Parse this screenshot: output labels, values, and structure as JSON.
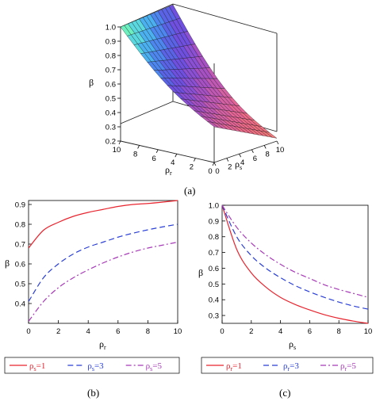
{
  "chart_data": [
    {
      "panel": "(a)",
      "type": "surface3d",
      "zlabel": "β",
      "xlabel": "ρr",
      "ylabel": "ρs",
      "zlim": [
        0.2,
        1.0
      ],
      "z_ticks": [
        "0.2",
        "0.3",
        "0.4",
        "0.5",
        "0.6",
        "0.7",
        "0.8",
        "0.9",
        "1.0"
      ],
      "x_ticks": [
        "10",
        "8",
        "6",
        "4",
        "2",
        "0"
      ],
      "y_ticks": [
        "0",
        "2",
        "4",
        "6",
        "8",
        "10"
      ],
      "corners": [
        {
          "rho_r": 10,
          "rho_s": 0,
          "beta": 1.0
        },
        {
          "rho_r": 0,
          "rho_s": 0,
          "beta": 1.0
        },
        {
          "rho_r": 10,
          "rho_s": 10,
          "beta": 0.45
        },
        {
          "rho_r": 0,
          "rho_s": 10,
          "beta": 0.22
        }
      ]
    },
    {
      "panel": "(b)",
      "type": "line",
      "xlabel": "ρr",
      "ylabel": "β",
      "xlim": [
        0,
        10
      ],
      "ylim": [
        0.3,
        0.92
      ],
      "x_ticks": [
        "0",
        "2",
        "4",
        "6",
        "8",
        "10"
      ],
      "y_ticks": [
        "0.4",
        "0.5",
        "0.6",
        "0.7",
        "0.8",
        "0.9"
      ],
      "x": [
        0,
        1,
        2,
        3,
        4,
        5,
        6,
        7,
        8,
        9,
        10
      ],
      "series": [
        {
          "name_base": "ρ",
          "name_sub": "s",
          "name_tail": "=1",
          "style": "solid",
          "color": "#e8252f",
          "values": [
            0.68,
            0.77,
            0.81,
            0.84,
            0.86,
            0.875,
            0.89,
            0.9,
            0.905,
            0.912,
            0.92
          ]
        },
        {
          "name_base": "ρ",
          "name_sub": "s",
          "name_tail": "=3",
          "style": "dashed",
          "color": "#2a3fd6",
          "values": [
            0.41,
            0.53,
            0.6,
            0.65,
            0.685,
            0.71,
            0.735,
            0.755,
            0.772,
            0.787,
            0.8
          ]
        },
        {
          "name_base": "ρ",
          "name_sub": "s",
          "name_tail": "=5",
          "style": "dashdot",
          "color": "#a83bb8",
          "values": [
            0.31,
            0.41,
            0.48,
            0.53,
            0.57,
            0.605,
            0.635,
            0.66,
            0.68,
            0.695,
            0.71
          ]
        }
      ],
      "legend": "below"
    },
    {
      "panel": "(c)",
      "type": "line",
      "xlabel": "ρs",
      "ylabel": "β",
      "xlim": [
        0,
        10
      ],
      "ylim": [
        0.25,
        1.0
      ],
      "x_ticks": [
        "0",
        "2",
        "4",
        "6",
        "8",
        "10"
      ],
      "y_ticks": [
        "0.3",
        "0.4",
        "0.5",
        "0.6",
        "0.7",
        "0.8",
        "0.9",
        "1.0"
      ],
      "x": [
        0,
        1,
        2,
        3,
        4,
        5,
        6,
        7,
        8,
        9,
        10
      ],
      "series": [
        {
          "name_base": "ρ",
          "name_sub": "r",
          "name_tail": "=1",
          "style": "solid",
          "color": "#e8252f",
          "values": [
            1.0,
            0.72,
            0.57,
            0.48,
            0.415,
            0.37,
            0.335,
            0.305,
            0.282,
            0.264,
            0.25
          ]
        },
        {
          "name_base": "ρ",
          "name_sub": "r",
          "name_tail": "=3",
          "style": "dashed",
          "color": "#2a3fd6",
          "values": [
            1.0,
            0.8,
            0.68,
            0.6,
            0.54,
            0.49,
            0.45,
            0.415,
            0.385,
            0.36,
            0.34
          ]
        },
        {
          "name_base": "ρ",
          "name_sub": "r",
          "name_tail": "=5",
          "style": "dashdot",
          "color": "#a83bb8",
          "values": [
            1.0,
            0.86,
            0.76,
            0.685,
            0.625,
            0.575,
            0.535,
            0.495,
            0.465,
            0.44,
            0.415
          ]
        }
      ],
      "legend": "below"
    }
  ]
}
